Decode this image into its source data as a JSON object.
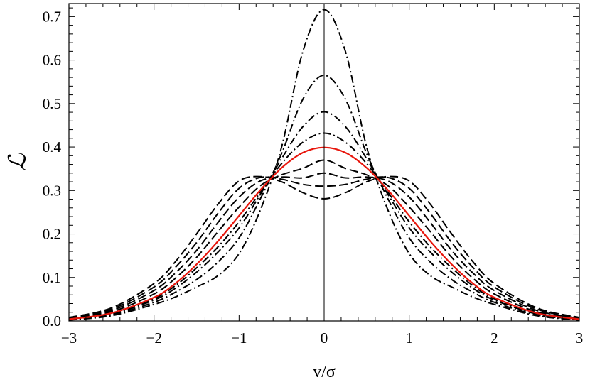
{
  "chart_data": {
    "type": "line",
    "xlabel": "v/σ",
    "ylabel": "ℒ",
    "xlim": [
      -3,
      3
    ],
    "ylim": [
      0,
      0.73
    ],
    "x_ticks": [
      -3,
      -2,
      -1,
      0,
      1,
      2,
      3
    ],
    "x_tick_labels": [
      "−3",
      "−2",
      "−1",
      "0",
      "1",
      "2",
      "3"
    ],
    "y_ticks": [
      0,
      0.1,
      0.2,
      0.3,
      0.4,
      0.5,
      0.6,
      0.7
    ],
    "y_tick_labels": [
      "0.0",
      "0.1",
      "0.2",
      "0.3",
      "0.4",
      "0.5",
      "0.6",
      "0.7"
    ],
    "grid": false,
    "legend": "none",
    "vertical_reference_line_x": 0,
    "x": [
      -3.0,
      -2.5,
      -2.0,
      -1.75,
      -1.5,
      -1.25,
      -1.0,
      -0.75,
      -0.5,
      -0.25,
      0.0,
      0.25,
      0.5,
      0.75,
      1.0,
      1.25,
      1.5,
      1.75,
      2.0,
      2.5,
      3.0
    ],
    "series": [
      {
        "color": "#e8160c",
        "style": "solid",
        "values": [
          0.004,
          0.018,
          0.054,
          0.086,
          0.13,
          0.183,
          0.242,
          0.301,
          0.352,
          0.387,
          0.399,
          0.387,
          0.352,
          0.301,
          0.242,
          0.183,
          0.13,
          0.086,
          0.054,
          0.018,
          0.004
        ]
      },
      {
        "color": "#000000",
        "style": "dash-dot",
        "values": [
          0.002,
          0.012,
          0.038,
          0.055,
          0.078,
          0.104,
          0.155,
          0.255,
          0.4,
          0.62,
          0.716,
          0.62,
          0.4,
          0.255,
          0.155,
          0.104,
          0.078,
          0.055,
          0.038,
          0.012,
          0.002
        ]
      },
      {
        "color": "#000000",
        "style": "dash-dot",
        "values": [
          0.003,
          0.014,
          0.043,
          0.066,
          0.095,
          0.135,
          0.191,
          0.281,
          0.385,
          0.51,
          0.565,
          0.51,
          0.385,
          0.281,
          0.191,
          0.135,
          0.095,
          0.066,
          0.043,
          0.014,
          0.003
        ]
      },
      {
        "color": "#000000",
        "style": "dash-dot",
        "values": [
          0.003,
          0.016,
          0.048,
          0.075,
          0.112,
          0.158,
          0.214,
          0.291,
          0.373,
          0.447,
          0.481,
          0.447,
          0.373,
          0.291,
          0.214,
          0.158,
          0.112,
          0.075,
          0.048,
          0.016,
          0.003
        ]
      },
      {
        "color": "#000000",
        "style": "dash-dot",
        "values": [
          0.004,
          0.017,
          0.051,
          0.081,
          0.122,
          0.17,
          0.228,
          0.296,
          0.362,
          0.411,
          0.432,
          0.411,
          0.362,
          0.296,
          0.228,
          0.17,
          0.122,
          0.081,
          0.051,
          0.017,
          0.004
        ]
      },
      {
        "color": "#000000",
        "style": "dashed",
        "values": [
          0.005,
          0.021,
          0.062,
          0.098,
          0.146,
          0.205,
          0.262,
          0.311,
          0.336,
          0.351,
          0.37,
          0.351,
          0.336,
          0.311,
          0.262,
          0.205,
          0.146,
          0.098,
          0.062,
          0.021,
          0.005
        ]
      },
      {
        "color": "#000000",
        "style": "dashed",
        "values": [
          0.006,
          0.024,
          0.07,
          0.11,
          0.162,
          0.226,
          0.285,
          0.322,
          0.331,
          0.329,
          0.34,
          0.329,
          0.331,
          0.322,
          0.285,
          0.226,
          0.162,
          0.11,
          0.07,
          0.024,
          0.006
        ]
      },
      {
        "color": "#000000",
        "style": "dashed",
        "values": [
          0.007,
          0.027,
          0.078,
          0.123,
          0.18,
          0.247,
          0.305,
          0.33,
          0.326,
          0.314,
          0.31,
          0.314,
          0.326,
          0.33,
          0.305,
          0.247,
          0.18,
          0.123,
          0.078,
          0.027,
          0.007
        ]
      },
      {
        "color": "#000000",
        "style": "dashed",
        "values": [
          0.008,
          0.03,
          0.086,
          0.136,
          0.2,
          0.268,
          0.322,
          0.332,
          0.32,
          0.295,
          0.281,
          0.295,
          0.32,
          0.332,
          0.322,
          0.268,
          0.2,
          0.136,
          0.086,
          0.03,
          0.008
        ]
      }
    ]
  }
}
